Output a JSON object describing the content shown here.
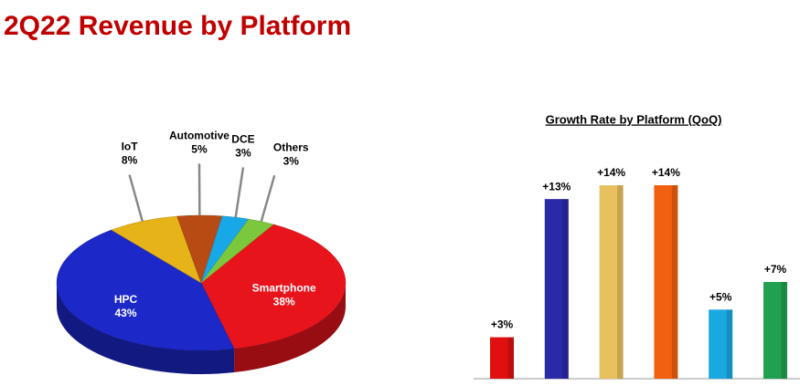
{
  "title": "2Q22 Revenue by Platform",
  "chart_data": [
    {
      "type": "pie",
      "categories": [
        "Smartphone",
        "HPC",
        "IoT",
        "Automotive",
        "DCE",
        "Others"
      ],
      "values": [
        38,
        43,
        8,
        5,
        3,
        3
      ],
      "value_labels": [
        "38%",
        "43%",
        "8%",
        "5%",
        "3%",
        "3%"
      ],
      "colors": [
        "#e8141c",
        "#1c28c8",
        "#e6b418",
        "#b84a14",
        "#18a8e8",
        "#7cc83c"
      ]
    },
    {
      "type": "bar",
      "title": "Growth Rate by Platform (QoQ)",
      "values": [
        3,
        13,
        14,
        14,
        5,
        7
      ],
      "value_labels": [
        "+3%",
        "+13%",
        "+14%",
        "+14%",
        "+5%",
        "+7%"
      ],
      "colors": [
        "#e01010",
        "#2a2aa8",
        "#e8c060",
        "#f06010",
        "#1aa8e0",
        "#20a050"
      ]
    }
  ]
}
